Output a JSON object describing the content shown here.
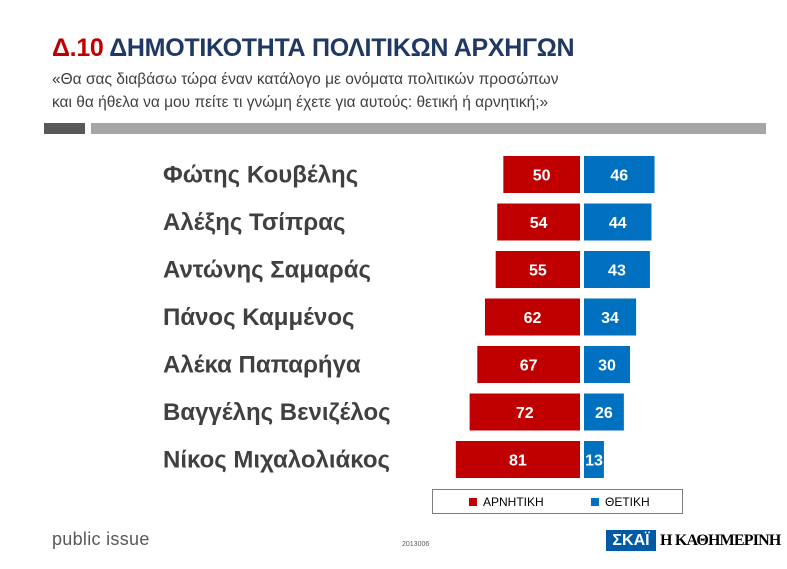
{
  "header": {
    "code": "Δ.10",
    "title": "ΔΗΜΟΤΙΚΟΤΗΤΑ ΠΟΛΙΤΙΚΩΝ ΑΡΧΗΓΩΝ",
    "subtitle_line1": "«Θα σας διαβάσω τώρα έναν κατάλογο με ονόματα πολιτικών προσώπων",
    "subtitle_line2": "και θα ήθελα να μου πείτε τι γνώμη έχετε για αυτούς: θετική ή αρνητική;»"
  },
  "colors": {
    "negative": "#c00000",
    "positive": "#0070c0",
    "title": "#1f3864",
    "code": "#c00000"
  },
  "chart_data": {
    "type": "bar",
    "orientation": "horizontal-diverging",
    "categories": [
      "Φώτης Κουβέλης",
      "Αλέξης Τσίπρας",
      "Αντώνης Σαμαράς",
      "Πάνος Καμμένος",
      "Αλέκα Παπαρήγα",
      "Βαγγέλης Βενιζέλος",
      "Νίκος Μιχαλολιάκος"
    ],
    "series": [
      {
        "name": "ΑΡΝΗΤΙΚΗ",
        "color": "#c00000",
        "values": [
          50,
          54,
          55,
          62,
          67,
          72,
          81
        ]
      },
      {
        "name": "ΘΕΤΙΚΗ",
        "color": "#0070c0",
        "values": [
          46,
          44,
          43,
          34,
          30,
          26,
          13
        ]
      }
    ],
    "legend": "bottom"
  },
  "footer": {
    "brand": "public issue",
    "code": "2013006",
    "skai": "ΣΚΑΪ",
    "kathimerini": "Η ΚΑΘΗΜΕΡΙΝΗ"
  }
}
